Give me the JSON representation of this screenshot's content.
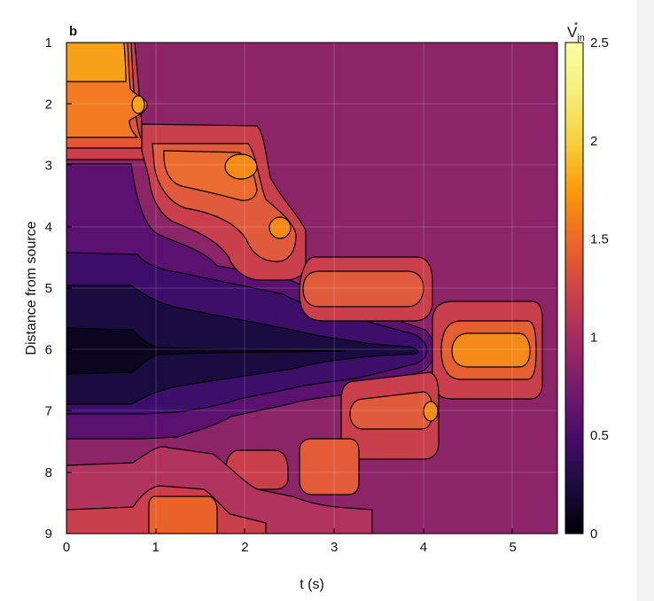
{
  "chart_data": {
    "type": "heatmap",
    "panel_label": "b",
    "xlabel": "t (s)",
    "ylabel": "Distance from source",
    "xlim": [
      0,
      5.5
    ],
    "ylim": [
      1,
      9
    ],
    "y_inverted": true,
    "grid": true,
    "x_ticks": [
      0,
      1,
      2,
      3,
      4,
      5
    ],
    "y_ticks": [
      1,
      2,
      3,
      4,
      5,
      6,
      7,
      8,
      9
    ],
    "colorbar": {
      "title": "V",
      "title_subscript": "jn",
      "title_superscript": "*",
      "range": [
        0,
        2.5
      ],
      "ticks": [
        "0",
        "0.5",
        "1",
        "1.5",
        "2",
        "2.5"
      ],
      "colormap": "inferno"
    },
    "background_value": 1.0,
    "regions": [
      {
        "name": "source-peak",
        "t": [
          0.0,
          0.75
        ],
        "d": [
          1.0,
          1.6
        ],
        "value": 2.1
      },
      {
        "name": "source-ring",
        "t": [
          0.0,
          0.8
        ],
        "d": [
          1.0,
          2.4
        ],
        "value": 1.8
      },
      {
        "name": "peak-d2",
        "t": 0.82,
        "d": 2.0,
        "value": 2.0
      },
      {
        "name": "front-d3-d4",
        "t": [
          1.0,
          2.6
        ],
        "d": [
          2.7,
          4.3
        ],
        "value": 1.6
      },
      {
        "name": "peak-d3",
        "t": 2.0,
        "d": 3.05,
        "value": 1.9
      },
      {
        "name": "peak-d4",
        "t": 2.45,
        "d": 4.0,
        "value": 1.8
      },
      {
        "name": "front-d5",
        "t": [
          3.2,
          4.0
        ],
        "d": [
          4.7,
          5.3
        ],
        "value": 1.5
      },
      {
        "name": "front-d6",
        "t": [
          4.3,
          5.3
        ],
        "d": [
          5.6,
          6.4
        ],
        "value": 1.85
      },
      {
        "name": "front-d7",
        "t": [
          3.3,
          4.3
        ],
        "d": [
          6.6,
          7.4
        ],
        "value": 1.55
      },
      {
        "name": "peak-d7",
        "t": 4.15,
        "d": 7.0,
        "value": 1.8
      },
      {
        "name": "blob-d8",
        "t": [
          2.6,
          3.4
        ],
        "d": [
          7.5,
          8.2
        ],
        "value": 1.35
      },
      {
        "name": "blob-d9",
        "t": [
          0.95,
          1.7
        ],
        "d": [
          8.6,
          9.0
        ],
        "value": 1.55
      },
      {
        "name": "trough-d6",
        "t": [
          0.0,
          4.0
        ],
        "d": [
          5.6,
          6.4
        ],
        "value": 0.1
      },
      {
        "name": "low-band",
        "t": [
          0.0,
          1.0
        ],
        "d": [
          2.9,
          7.0
        ],
        "value": 0.55
      }
    ]
  }
}
